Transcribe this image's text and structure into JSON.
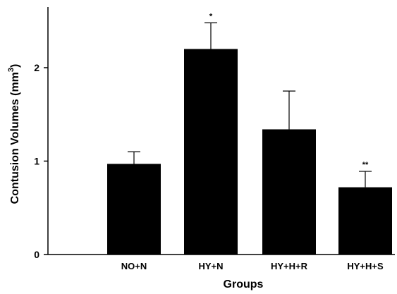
{
  "chart_data": {
    "type": "bar",
    "title": "",
    "xlabel": "Groups",
    "ylabel_main": "Contusion Volumes (mm",
    "ylabel_sup": "3",
    "ylabel_close": ")",
    "categories": [
      "NO+N",
      "HY+N",
      "HY+H+R",
      "HY+H+S"
    ],
    "values": [
      0.97,
      2.2,
      1.34,
      0.72
    ],
    "error_upper": [
      1.1,
      2.48,
      1.75,
      0.89
    ],
    "significance": [
      "",
      "*",
      "",
      "**"
    ],
    "ylim": [
      0,
      2.5
    ],
    "yticks": [
      0,
      1,
      2
    ],
    "ytick_labels": [
      "0",
      "1",
      "2"
    ],
    "bar_color": "#000000",
    "grid": false,
    "legend": "none"
  }
}
